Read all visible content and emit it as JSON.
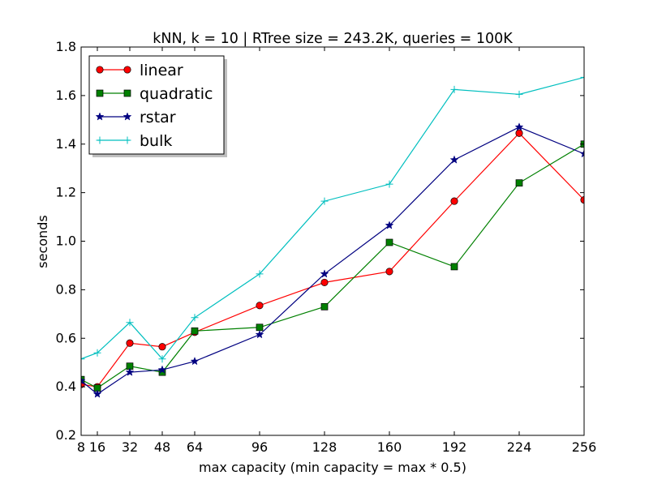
{
  "chart_data": {
    "type": "line",
    "title": "kNN, k = 10 | RTree size = 243.2K, queries = 100K",
    "xlabel": "max capacity (min capacity = max * 0.5)",
    "ylabel": "seconds",
    "xlim": [
      8,
      256
    ],
    "ylim": [
      0.2,
      1.8
    ],
    "x": [
      8,
      16,
      32,
      48,
      64,
      96,
      128,
      160,
      192,
      224,
      256
    ],
    "x_ticks": [
      "8",
      "16",
      "32",
      "48",
      "64",
      "96",
      "128",
      "160",
      "192",
      "224",
      "256"
    ],
    "y_ticks": [
      "0.2",
      "0.4",
      "0.6",
      "0.8",
      "1.0",
      "1.2",
      "1.4",
      "1.6",
      "1.8"
    ],
    "grid": false,
    "legend_position": "top-left",
    "series": [
      {
        "name": "linear",
        "color": "#ff0000",
        "marker": "circle",
        "values": [
          0.41,
          0.4,
          0.58,
          0.565,
          0.625,
          0.735,
          0.83,
          0.875,
          1.165,
          1.445,
          1.17
        ]
      },
      {
        "name": "quadratic",
        "color": "#008000",
        "marker": "square",
        "values": [
          0.43,
          0.395,
          0.485,
          0.46,
          0.63,
          0.645,
          0.73,
          0.995,
          0.895,
          1.24,
          1.4
        ]
      },
      {
        "name": "rstar",
        "color": "#000080",
        "marker": "star",
        "values": [
          0.425,
          0.37,
          0.46,
          0.47,
          0.505,
          0.615,
          0.865,
          1.065,
          1.335,
          1.47,
          1.36
        ]
      },
      {
        "name": "bulk",
        "color": "#00bfbf",
        "marker": "plus",
        "values": [
          0.515,
          0.54,
          0.665,
          0.515,
          0.685,
          0.865,
          1.165,
          1.235,
          1.625,
          1.605,
          1.675
        ]
      }
    ]
  }
}
